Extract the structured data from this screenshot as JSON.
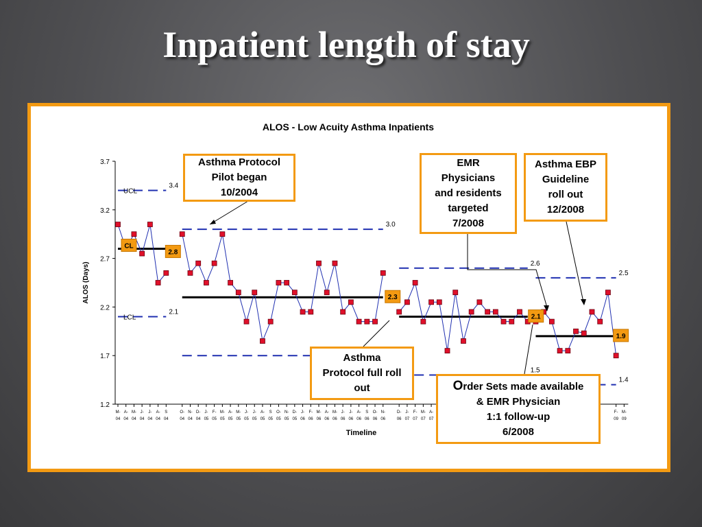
{
  "slide": {
    "title": "Inpatient length of stay"
  },
  "colors": {
    "frame": "#f39a12",
    "limit_line": "#1f2fb0",
    "series": "#1f2fb0",
    "marker": "#e0102a",
    "center_line": "#000000",
    "label_box": "#f39a12"
  },
  "chart_data": {
    "type": "line",
    "title": "ALOS - Low Acuity Asthma Inpatients",
    "xlabel": "Timeline",
    "ylabel": "ALOS (Days)",
    "ylim": [
      1.2,
      3.7
    ],
    "yticks": [
      "1.2",
      "1.7",
      "2.2",
      "2.7",
      "3.2",
      "3.7"
    ],
    "grid": false,
    "x_labels": [
      {
        "month": "M-",
        "year": "04"
      },
      {
        "month": "A-",
        "year": "04"
      },
      {
        "month": "M-",
        "year": "04"
      },
      {
        "month": "J-",
        "year": "04"
      },
      {
        "month": "J-",
        "year": "04"
      },
      {
        "month": "A-",
        "year": "04"
      },
      {
        "month": "S",
        "year": "04"
      },
      {
        "month": "O-",
        "year": "04"
      },
      {
        "month": "N-",
        "year": "04"
      },
      {
        "month": "D-",
        "year": "04"
      },
      {
        "month": "J-",
        "year": "05"
      },
      {
        "month": "F-",
        "year": "05"
      },
      {
        "month": "M-",
        "year": "05"
      },
      {
        "month": "A-",
        "year": "05"
      },
      {
        "month": "M-",
        "year": "05"
      },
      {
        "month": "J-",
        "year": "05"
      },
      {
        "month": "J-",
        "year": "05"
      },
      {
        "month": "A-",
        "year": "05"
      },
      {
        "month": "S",
        "year": "05"
      },
      {
        "month": "O-",
        "year": "05"
      },
      {
        "month": "N-",
        "year": "05"
      },
      {
        "month": "D-",
        "year": "05"
      },
      {
        "month": "J-",
        "year": "06"
      },
      {
        "month": "F-",
        "year": "06"
      },
      {
        "month": "M-",
        "year": "06"
      },
      {
        "month": "A-",
        "year": "06"
      },
      {
        "month": "M-",
        "year": "06"
      },
      {
        "month": "J-",
        "year": "06"
      },
      {
        "month": "J-",
        "year": "06"
      },
      {
        "month": "A-",
        "year": "06"
      },
      {
        "month": "S",
        "year": "06"
      },
      {
        "month": "O-",
        "year": "06"
      },
      {
        "month": "N-",
        "year": "06"
      },
      {
        "month": "D-",
        "year": "06"
      },
      {
        "month": "J-",
        "year": "07"
      },
      {
        "month": "F-",
        "year": "07"
      },
      {
        "month": "M-",
        "year": "07"
      },
      {
        "month": "A-",
        "year": "07"
      },
      {
        "month": "M-",
        "year": "07"
      },
      {
        "month": "F-",
        "year": "09"
      },
      {
        "month": "M-",
        "year": "09"
      }
    ],
    "x_label_positions": [
      0,
      1,
      2,
      3,
      4,
      5,
      6,
      8,
      9,
      10,
      11,
      12,
      13,
      14,
      15,
      16,
      17,
      18,
      19,
      20,
      21,
      22,
      23,
      24,
      25,
      26,
      27,
      28,
      29,
      30,
      31,
      32,
      33,
      35,
      36,
      37,
      38,
      39,
      40,
      62,
      63
    ],
    "series": [
      {
        "name": "ALOS",
        "segments": [
          {
            "start": 0,
            "values": [
              3.05,
              2.8,
              2.95,
              2.75,
              3.05,
              2.45,
              2.55
            ]
          },
          {
            "start": 8,
            "values": [
              2.95,
              2.55,
              2.65,
              2.45,
              2.65,
              2.95,
              2.45,
              2.35,
              2.05,
              2.35,
              1.85,
              2.05,
              2.45,
              2.45,
              2.35,
              2.15,
              2.15,
              2.65,
              2.35,
              2.65,
              2.15,
              2.25,
              2.05,
              2.05,
              2.05,
              2.55
            ]
          },
          {
            "start": 35,
            "values": [
              2.15,
              2.25,
              2.45,
              2.05,
              2.25,
              2.25,
              1.75,
              2.35,
              1.85,
              2.15,
              2.25,
              2.15,
              2.15,
              2.05,
              2.05,
              2.15,
              2.05
            ]
          },
          {
            "start": 52,
            "values": [
              2.05,
              2.15,
              2.05,
              1.75,
              1.75,
              1.95,
              1.93,
              2.15,
              2.05,
              2.35,
              1.7
            ]
          }
        ]
      }
    ],
    "center_lines": [
      {
        "from": 0,
        "to": 6,
        "value": 2.8,
        "label": "2.8"
      },
      {
        "from": 8,
        "to": 33,
        "value": 2.3,
        "label": "2.3"
      },
      {
        "from": 35,
        "to": 51,
        "value": 2.1,
        "label": "2.1"
      },
      {
        "from": 52,
        "to": 62,
        "value": 1.9,
        "label": "1.9"
      }
    ],
    "ucl_lines": [
      {
        "from": 0,
        "to": 6,
        "value": 3.4,
        "label": "3.4"
      },
      {
        "from": 8,
        "to": 33,
        "value": 3.0,
        "label": "3.0"
      },
      {
        "from": 35,
        "to": 51,
        "value": 2.6,
        "label": "2.6"
      },
      {
        "from": 52,
        "to": 62,
        "value": 2.5,
        "label": "2.5"
      }
    ],
    "lcl_lines": [
      {
        "from": 0,
        "to": 6,
        "value": 2.1,
        "label": "2.1"
      },
      {
        "from": 8,
        "to": 33,
        "value": 1.7,
        "label": "1.7"
      },
      {
        "from": 35,
        "to": 51,
        "value": 1.5,
        "label": "1.5"
      },
      {
        "from": 52,
        "to": 62,
        "value": 1.4,
        "label": "1.4"
      }
    ],
    "series_labels": {
      "ucl": "UCL",
      "lcl": "LCL",
      "cl": "CL"
    }
  },
  "callouts": {
    "pilot": [
      "Asthma Protocol",
      "Pilot began",
      "10/2004"
    ],
    "full_rollout": [
      "Asthma",
      "Protocol full roll",
      "out"
    ],
    "emr": [
      "EMR",
      "Physicians",
      "and residents",
      "targeted",
      "7/2008"
    ],
    "ebp": [
      "Asthma EBP",
      "Guideline",
      "roll out",
      "12/2008"
    ],
    "order_sets": {
      "first_letter": "O",
      "line1_rest": "rder Sets made available",
      "line2": "& EMR Physician",
      "line3": "1:1 follow-up",
      "line4": "6/2008"
    }
  }
}
